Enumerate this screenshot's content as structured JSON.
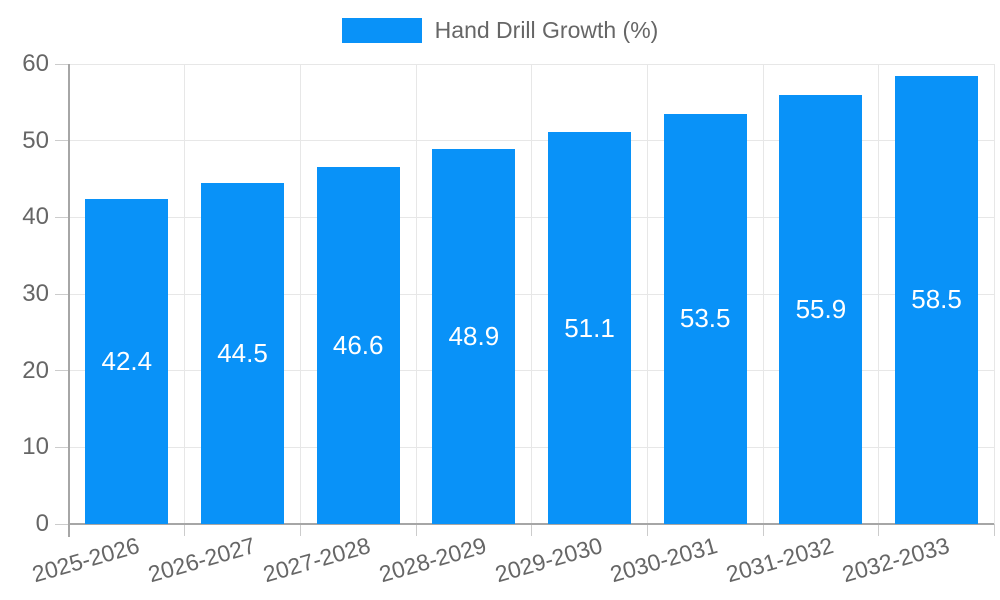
{
  "legend": {
    "label": "Hand Drill Growth (%)",
    "swatch_color": "#0992f8"
  },
  "chart_data": {
    "type": "bar",
    "title": "",
    "xlabel": "",
    "ylabel": "",
    "legend_position": "top",
    "legend_label": "Hand Drill Growth (%)",
    "categories": [
      "2025-2026",
      "2026-2027",
      "2027-2028",
      "2028-2029",
      "2029-2030",
      "2030-2031",
      "2031-2032",
      "2032-2033"
    ],
    "series": [
      {
        "name": "Hand Drill Growth (%)",
        "values": [
          42.4,
          44.5,
          46.6,
          48.9,
          51.1,
          53.5,
          55.9,
          58.5
        ]
      }
    ],
    "value_labels": [
      "42.4",
      "44.5",
      "46.6",
      "48.9",
      "51.1",
      "53.5",
      "55.9",
      "58.5"
    ],
    "ylim": [
      0,
      60
    ],
    "yticks": [
      0,
      10,
      20,
      30,
      40,
      50,
      60
    ],
    "grid": true,
    "colors": {
      "bar": "#0992f8",
      "value_label": "#ffffff",
      "axis_text": "#666666",
      "grid_line": "#e7e7e7",
      "axis_line": "#a6a6a6",
      "tick_mark": "#cccccc"
    }
  }
}
